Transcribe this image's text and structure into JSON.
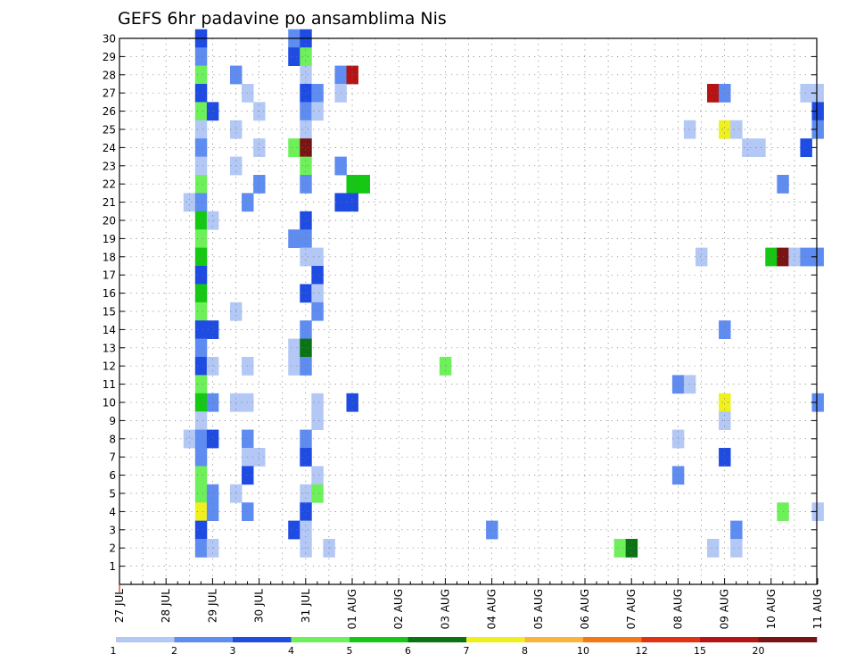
{
  "chart_data": {
    "type": "heatmap",
    "title": "GEFS 6hr padavine po ansamblima Nis",
    "xlabel": "",
    "ylabel": "",
    "x_tick_labels": [
      "27 JUL",
      "28 JUL",
      "29 JUL",
      "30 JUL",
      "31 JUL",
      "01 AUG",
      "02 AUG",
      "03 AUG",
      "04 AUG",
      "05 AUG",
      "06 AUG",
      "07 AUG",
      "08 AUG",
      "09 AUG",
      "10 AUG",
      "11 AUG"
    ],
    "y_tick_labels": [
      "1",
      "2",
      "3",
      "4",
      "5",
      "6",
      "7",
      "8",
      "9",
      "10",
      "11",
      "12",
      "13",
      "14",
      "15",
      "16",
      "17",
      "18",
      "19",
      "20",
      "21",
      "22",
      "23",
      "24",
      "25",
      "26",
      "27",
      "28",
      "29",
      "30"
    ],
    "x_range_days": [
      0,
      15
    ],
    "y_range": [
      0,
      30
    ],
    "grid": "dotted",
    "colorbar": {
      "placement": "bottom",
      "labels": [
        "1",
        "2",
        "3",
        "4",
        "5",
        "6",
        "7",
        "8",
        "10",
        "12",
        "15",
        "20"
      ],
      "colors": [
        "#b4c8f5",
        "#5f8cf0",
        "#1e4be1",
        "#6ef05a",
        "#14c814",
        "#0a7314",
        "#f0f01e",
        "#fab43c",
        "#f57814",
        "#e13214",
        "#b41414",
        "#781414"
      ]
    },
    "cells": [
      {
        "m": 30,
        "d": 1.75,
        "v": 3
      },
      {
        "m": 30,
        "d": 3.75,
        "v": 2
      },
      {
        "m": 30,
        "d": 4.0,
        "v": 3
      },
      {
        "m": 29,
        "d": 1.75,
        "v": 2
      },
      {
        "m": 29,
        "d": 3.75,
        "v": 3
      },
      {
        "m": 29,
        "d": 4.0,
        "v": 4
      },
      {
        "m": 28,
        "d": 1.75,
        "v": 4
      },
      {
        "m": 28,
        "d": 2.5,
        "v": 2
      },
      {
        "m": 28,
        "d": 4.0,
        "v": 1
      },
      {
        "m": 28,
        "d": 4.75,
        "v": 2
      },
      {
        "m": 28,
        "d": 5.0,
        "v": 15
      },
      {
        "m": 27,
        "d": 1.75,
        "v": 3
      },
      {
        "m": 27,
        "d": 2.75,
        "v": 1
      },
      {
        "m": 27,
        "d": 4.0,
        "v": 3
      },
      {
        "m": 27,
        "d": 4.25,
        "v": 2
      },
      {
        "m": 27,
        "d": 4.75,
        "v": 1
      },
      {
        "m": 27,
        "d": 12.75,
        "v": 15
      },
      {
        "m": 27,
        "d": 13.0,
        "v": 2
      },
      {
        "m": 27,
        "d": 14.75,
        "v": 1
      },
      {
        "m": 27,
        "d": 15.0,
        "v": 1
      },
      {
        "m": 26,
        "d": 1.75,
        "v": 4
      },
      {
        "m": 26,
        "d": 2.0,
        "v": 3
      },
      {
        "m": 26,
        "d": 3.0,
        "v": 1
      },
      {
        "m": 26,
        "d": 4.0,
        "v": 2
      },
      {
        "m": 26,
        "d": 4.25,
        "v": 1
      },
      {
        "m": 26,
        "d": 15.0,
        "v": 3
      },
      {
        "m": 25,
        "d": 1.75,
        "v": 1
      },
      {
        "m": 25,
        "d": 2.5,
        "v": 1
      },
      {
        "m": 25,
        "d": 4.0,
        "v": 1
      },
      {
        "m": 25,
        "d": 12.25,
        "v": 1
      },
      {
        "m": 25,
        "d": 13.0,
        "v": 7
      },
      {
        "m": 25,
        "d": 13.25,
        "v": 1
      },
      {
        "m": 25,
        "d": 15.0,
        "v": 2
      },
      {
        "m": 24,
        "d": 1.75,
        "v": 2
      },
      {
        "m": 24,
        "d": 3.0,
        "v": 1
      },
      {
        "m": 24,
        "d": 3.75,
        "v": 4
      },
      {
        "m": 24,
        "d": 4.0,
        "v": 20
      },
      {
        "m": 24,
        "d": 13.5,
        "v": 1
      },
      {
        "m": 24,
        "d": 13.75,
        "v": 1
      },
      {
        "m": 24,
        "d": 14.75,
        "v": 3
      },
      {
        "m": 23,
        "d": 1.75,
        "v": 1
      },
      {
        "m": 23,
        "d": 2.5,
        "v": 1
      },
      {
        "m": 23,
        "d": 4.0,
        "v": 4
      },
      {
        "m": 23,
        "d": 4.75,
        "v": 2
      },
      {
        "m": 22,
        "d": 1.75,
        "v": 4
      },
      {
        "m": 22,
        "d": 3.0,
        "v": 2
      },
      {
        "m": 22,
        "d": 4.0,
        "v": 2
      },
      {
        "m": 22,
        "d": 5.0,
        "v": 5
      },
      {
        "m": 22,
        "d": 5.25,
        "v": 5
      },
      {
        "m": 22,
        "d": 14.25,
        "v": 2
      },
      {
        "m": 21,
        "d": 1.5,
        "v": 1
      },
      {
        "m": 21,
        "d": 1.75,
        "v": 2
      },
      {
        "m": 21,
        "d": 2.75,
        "v": 2
      },
      {
        "m": 21,
        "d": 4.75,
        "v": 3
      },
      {
        "m": 21,
        "d": 5.0,
        "v": 3
      },
      {
        "m": 20,
        "d": 1.75,
        "v": 5
      },
      {
        "m": 20,
        "d": 2.0,
        "v": 1
      },
      {
        "m": 20,
        "d": 4.0,
        "v": 3
      },
      {
        "m": 19,
        "d": 1.75,
        "v": 4
      },
      {
        "m": 19,
        "d": 3.75,
        "v": 2
      },
      {
        "m": 19,
        "d": 4.0,
        "v": 2
      },
      {
        "m": 18,
        "d": 1.75,
        "v": 5
      },
      {
        "m": 18,
        "d": 4.0,
        "v": 1
      },
      {
        "m": 18,
        "d": 4.25,
        "v": 1
      },
      {
        "m": 18,
        "d": 12.5,
        "v": 1
      },
      {
        "m": 18,
        "d": 14.0,
        "v": 5
      },
      {
        "m": 18,
        "d": 14.25,
        "v": 20
      },
      {
        "m": 18,
        "d": 14.5,
        "v": 1
      },
      {
        "m": 18,
        "d": 14.75,
        "v": 2
      },
      {
        "m": 18,
        "d": 15.0,
        "v": 2
      },
      {
        "m": 17,
        "d": 1.75,
        "v": 3
      },
      {
        "m": 17,
        "d": 4.25,
        "v": 3
      },
      {
        "m": 16,
        "d": 1.75,
        "v": 5
      },
      {
        "m": 16,
        "d": 4.0,
        "v": 3
      },
      {
        "m": 16,
        "d": 4.25,
        "v": 1
      },
      {
        "m": 15,
        "d": 1.75,
        "v": 4
      },
      {
        "m": 15,
        "d": 2.5,
        "v": 1
      },
      {
        "m": 15,
        "d": 4.25,
        "v": 2
      },
      {
        "m": 14,
        "d": 1.75,
        "v": 3
      },
      {
        "m": 14,
        "d": 2.0,
        "v": 3
      },
      {
        "m": 14,
        "d": 4.0,
        "v": 2
      },
      {
        "m": 14,
        "d": 13.0,
        "v": 2
      },
      {
        "m": 13,
        "d": 1.75,
        "v": 2
      },
      {
        "m": 13,
        "d": 3.75,
        "v": 1
      },
      {
        "m": 13,
        "d": 4.0,
        "v": 6
      },
      {
        "m": 12,
        "d": 1.75,
        "v": 3
      },
      {
        "m": 12,
        "d": 2.0,
        "v": 1
      },
      {
        "m": 12,
        "d": 2.75,
        "v": 1
      },
      {
        "m": 12,
        "d": 3.75,
        "v": 1
      },
      {
        "m": 12,
        "d": 4.0,
        "v": 2
      },
      {
        "m": 12,
        "d": 7.0,
        "v": 4
      },
      {
        "m": 11,
        "d": 1.75,
        "v": 4
      },
      {
        "m": 11,
        "d": 12.0,
        "v": 2
      },
      {
        "m": 11,
        "d": 12.25,
        "v": 1
      },
      {
        "m": 10,
        "d": 1.75,
        "v": 5
      },
      {
        "m": 10,
        "d": 2.0,
        "v": 2
      },
      {
        "m": 10,
        "d": 2.5,
        "v": 1
      },
      {
        "m": 10,
        "d": 2.75,
        "v": 1
      },
      {
        "m": 10,
        "d": 4.25,
        "v": 1
      },
      {
        "m": 10,
        "d": 5.0,
        "v": 3
      },
      {
        "m": 10,
        "d": 13.0,
        "v": 7
      },
      {
        "m": 10,
        "d": 15.0,
        "v": 2
      },
      {
        "m": 9,
        "d": 1.75,
        "v": 1
      },
      {
        "m": 9,
        "d": 4.25,
        "v": 1
      },
      {
        "m": 9,
        "d": 13.0,
        "v": 1
      },
      {
        "m": 8,
        "d": 1.5,
        "v": 1
      },
      {
        "m": 8,
        "d": 1.75,
        "v": 2
      },
      {
        "m": 8,
        "d": 2.0,
        "v": 3
      },
      {
        "m": 8,
        "d": 2.75,
        "v": 2
      },
      {
        "m": 8,
        "d": 4.0,
        "v": 2
      },
      {
        "m": 8,
        "d": 12.0,
        "v": 1
      },
      {
        "m": 7,
        "d": 1.75,
        "v": 2
      },
      {
        "m": 7,
        "d": 2.75,
        "v": 1
      },
      {
        "m": 7,
        "d": 3.0,
        "v": 1
      },
      {
        "m": 7,
        "d": 4.0,
        "v": 3
      },
      {
        "m": 7,
        "d": 13.0,
        "v": 3
      },
      {
        "m": 6,
        "d": 1.75,
        "v": 4
      },
      {
        "m": 6,
        "d": 2.75,
        "v": 3
      },
      {
        "m": 6,
        "d": 4.25,
        "v": 1
      },
      {
        "m": 6,
        "d": 12.0,
        "v": 2
      },
      {
        "m": 5,
        "d": 1.75,
        "v": 4
      },
      {
        "m": 5,
        "d": 2.0,
        "v": 2
      },
      {
        "m": 5,
        "d": 2.5,
        "v": 1
      },
      {
        "m": 5,
        "d": 4.0,
        "v": 1
      },
      {
        "m": 5,
        "d": 4.25,
        "v": 4
      },
      {
        "m": 4,
        "d": 1.75,
        "v": 7
      },
      {
        "m": 4,
        "d": 2.0,
        "v": 2
      },
      {
        "m": 4,
        "d": 2.75,
        "v": 2
      },
      {
        "m": 4,
        "d": 4.0,
        "v": 3
      },
      {
        "m": 4,
        "d": 14.25,
        "v": 4
      },
      {
        "m": 4,
        "d": 15.0,
        "v": 1
      },
      {
        "m": 3,
        "d": 1.75,
        "v": 3
      },
      {
        "m": 3,
        "d": 3.75,
        "v": 3
      },
      {
        "m": 3,
        "d": 4.0,
        "v": 1
      },
      {
        "m": 3,
        "d": 8.0,
        "v": 2
      },
      {
        "m": 3,
        "d": 13.25,
        "v": 2
      },
      {
        "m": 2,
        "d": 1.75,
        "v": 2
      },
      {
        "m": 2,
        "d": 2.0,
        "v": 1
      },
      {
        "m": 2,
        "d": 4.0,
        "v": 1
      },
      {
        "m": 2,
        "d": 4.5,
        "v": 1
      },
      {
        "m": 2,
        "d": 10.75,
        "v": 4
      },
      {
        "m": 2,
        "d": 11.0,
        "v": 6
      },
      {
        "m": 2,
        "d": 12.75,
        "v": 1
      },
      {
        "m": 2,
        "d": 13.25,
        "v": 1
      }
    ]
  }
}
